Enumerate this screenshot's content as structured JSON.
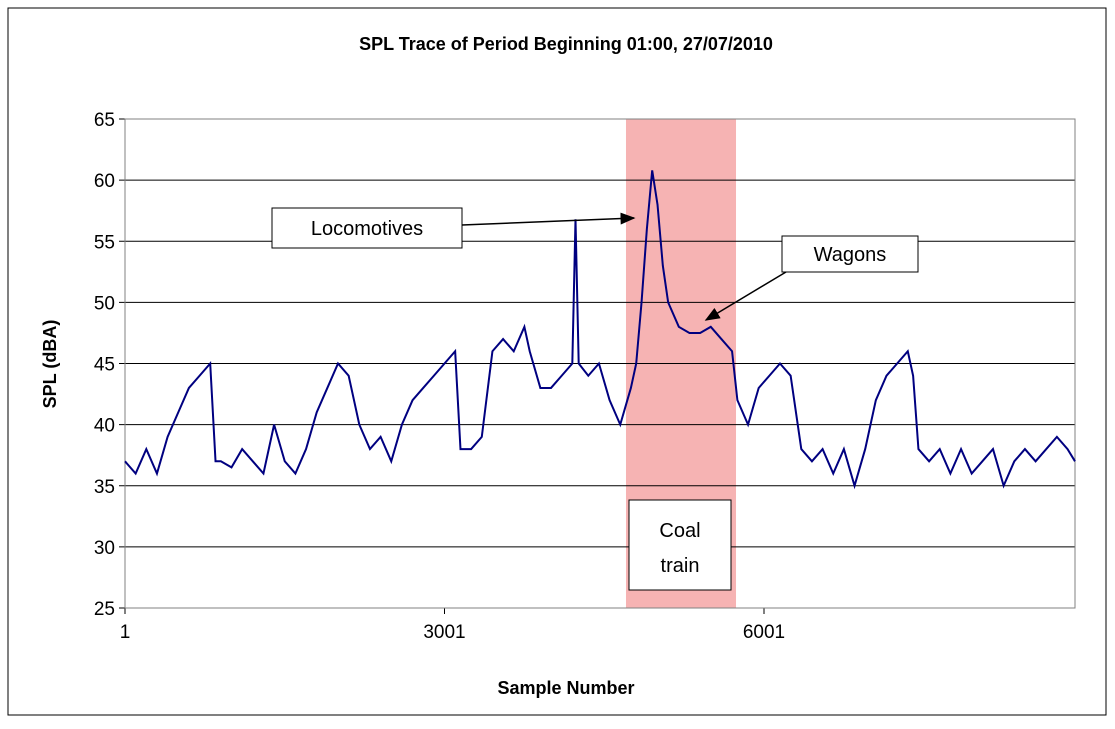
{
  "chart_data": {
    "type": "line",
    "title": "SPL Trace of Period Beginning 01:00, 27/07/2010",
    "x_label": "Sample Number",
    "y_label": "SPL (dBA)",
    "x": [
      1,
      101,
      201,
      301,
      401,
      501,
      601,
      701,
      801,
      851,
      901,
      1001,
      1101,
      1201,
      1301,
      1401,
      1501,
      1601,
      1701,
      1801,
      1901,
      2001,
      2101,
      2201,
      2301,
      2401,
      2501,
      2601,
      2701,
      2801,
      2901,
      3001,
      3101,
      3151,
      3251,
      3351,
      3451,
      3551,
      3651,
      3751,
      3801,
      3901,
      4001,
      4101,
      4201,
      4231,
      4261,
      4351,
      4451,
      4551,
      4651,
      4751,
      4801,
      4851,
      4901,
      4951,
      5001,
      5051,
      5101,
      5201,
      5301,
      5401,
      5501,
      5601,
      5701,
      5751,
      5851,
      5951,
      6051,
      6151,
      6251,
      6351,
      6451,
      6551,
      6651,
      6751,
      6851,
      6951,
      7051,
      7151,
      7251,
      7351,
      7401,
      7451,
      7551,
      7651,
      7751,
      7851,
      7951,
      8051,
      8151,
      8251,
      8351,
      8451,
      8551,
      8651,
      8751,
      8851,
      8921
    ],
    "series": [
      {
        "name": "SPL",
        "color": "#000080",
        "values": [
          37,
          36,
          38,
          36,
          39,
          41,
          43,
          44,
          45,
          37,
          37,
          36.5,
          38,
          37,
          36,
          40,
          37,
          36,
          38,
          41,
          43,
          45,
          44,
          40,
          38,
          39,
          37,
          40,
          42,
          43,
          44,
          45,
          46,
          38,
          38,
          39,
          46,
          47,
          46,
          48,
          46,
          43,
          43,
          44,
          45,
          56.8,
          45,
          44,
          45,
          42,
          40,
          43,
          45,
          50,
          56,
          60.8,
          58,
          53,
          50,
          48,
          47.5,
          47.5,
          48,
          47,
          46,
          42,
          40,
          43,
          44,
          45,
          44,
          38,
          37,
          38,
          36,
          38,
          35,
          38,
          42,
          44,
          45,
          46,
          44,
          38,
          37,
          38,
          36,
          38,
          36,
          37,
          38,
          35,
          37,
          38,
          37,
          38,
          39,
          38,
          37
        ]
      }
    ],
    "xlim": [
      1,
      8921
    ],
    "xticks": [
      1,
      3001,
      6001
    ],
    "ylim": [
      25,
      65
    ],
    "yticks": [
      25,
      30,
      35,
      40,
      45,
      50,
      55,
      60,
      65
    ],
    "grid": true,
    "shaded_span": {
      "x": [
        4705,
        5738
      ],
      "color": "#f4a6a6",
      "lines": [
        "Coal",
        "train"
      ]
    },
    "annotations": [
      {
        "text": "Locomotives"
      },
      {
        "text": "Wagons"
      }
    ]
  }
}
